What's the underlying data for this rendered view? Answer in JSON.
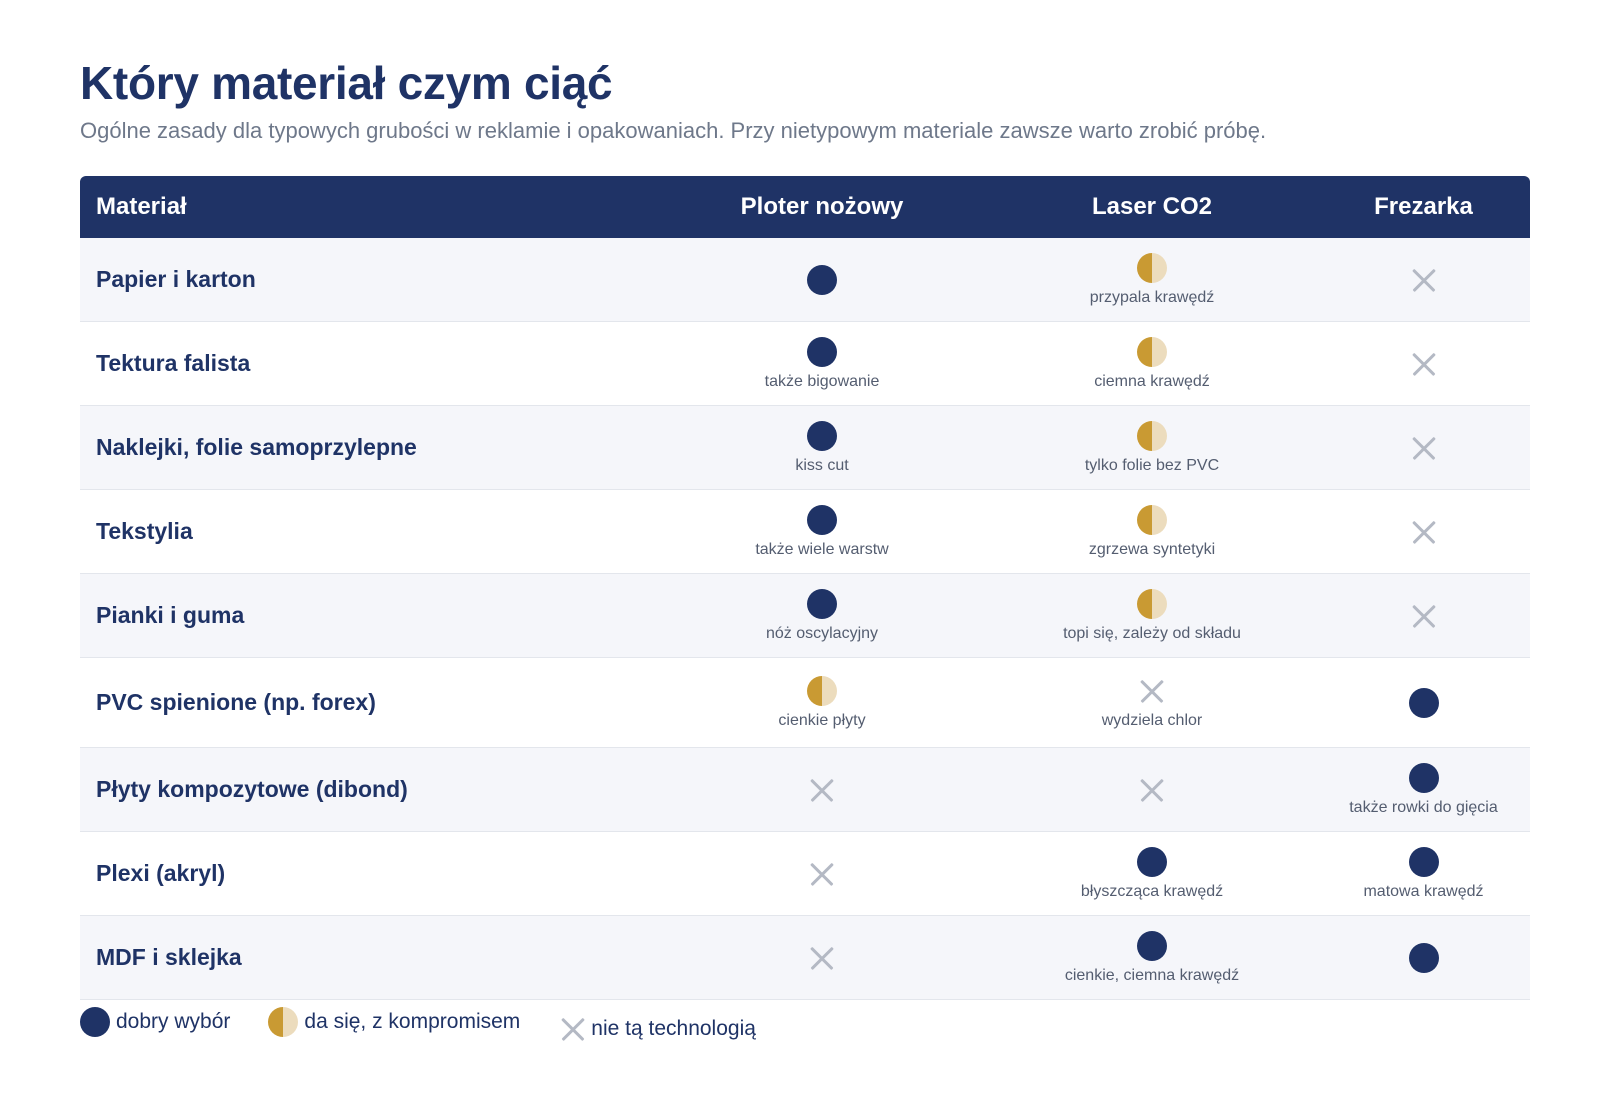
{
  "header": {
    "title": "Który materiał czym ciąć",
    "subtitle": "Ogólne zasady dla typowych grubości w reklamie i opakowaniach. Przy nietypowym materiale zawsze warto zrobić próbę."
  },
  "table": {
    "columns": [
      "Materiał",
      "Ploter nożowy",
      "Laser CO2",
      "Frezarka"
    ],
    "rows": [
      {
        "label": "Papier i karton",
        "cells": [
          {
            "mark": "good",
            "note": ""
          },
          {
            "mark": "half",
            "note": "przypala krawędź"
          },
          {
            "mark": "no",
            "note": ""
          }
        ]
      },
      {
        "label": "Tektura falista",
        "cells": [
          {
            "mark": "good",
            "note": "także bigowanie"
          },
          {
            "mark": "half",
            "note": "ciemna krawędź"
          },
          {
            "mark": "no",
            "note": ""
          }
        ]
      },
      {
        "label": "Naklejki, folie samoprzylepne",
        "cells": [
          {
            "mark": "good",
            "note": "kiss cut"
          },
          {
            "mark": "half",
            "note": "tylko folie bez PVC"
          },
          {
            "mark": "no",
            "note": ""
          }
        ]
      },
      {
        "label": "Tekstylia",
        "cells": [
          {
            "mark": "good",
            "note": "także wiele warstw"
          },
          {
            "mark": "half",
            "note": "zgrzewa syntetyki"
          },
          {
            "mark": "no",
            "note": ""
          }
        ]
      },
      {
        "label": "Pianki i guma",
        "cells": [
          {
            "mark": "good",
            "note": "nóż oscylacyjny"
          },
          {
            "mark": "half",
            "note": "topi się, zależy od składu"
          },
          {
            "mark": "no",
            "note": ""
          }
        ]
      },
      {
        "label": "PVC spienione (np. forex)",
        "cells": [
          {
            "mark": "half",
            "note": "cienkie płyty"
          },
          {
            "mark": "no",
            "note": "wydziela chlor"
          },
          {
            "mark": "good",
            "note": ""
          }
        ]
      },
      {
        "label": "Płyty kompozytowe (dibond)",
        "cells": [
          {
            "mark": "no",
            "note": ""
          },
          {
            "mark": "no",
            "note": ""
          },
          {
            "mark": "good",
            "note": "także rowki do gięcia"
          }
        ]
      },
      {
        "label": "Plexi (akryl)",
        "cells": [
          {
            "mark": "no",
            "note": ""
          },
          {
            "mark": "good",
            "note": "błyszcząca krawędź"
          },
          {
            "mark": "good",
            "note": "matowa krawędź"
          }
        ]
      },
      {
        "label": "MDF i sklejka",
        "cells": [
          {
            "mark": "no",
            "note": ""
          },
          {
            "mark": "good",
            "note": "cienkie, ciemna krawędź"
          },
          {
            "mark": "good",
            "note": ""
          }
        ]
      }
    ]
  },
  "legend": {
    "good": "dobry wybór",
    "half": "da się, z kompromisem",
    "no": "nie tą technologią"
  },
  "colors": {
    "navy": "#1f3366",
    "gold": "#c99a33",
    "gold_light": "#ecdcbd",
    "cross": "#b4b9c4"
  }
}
